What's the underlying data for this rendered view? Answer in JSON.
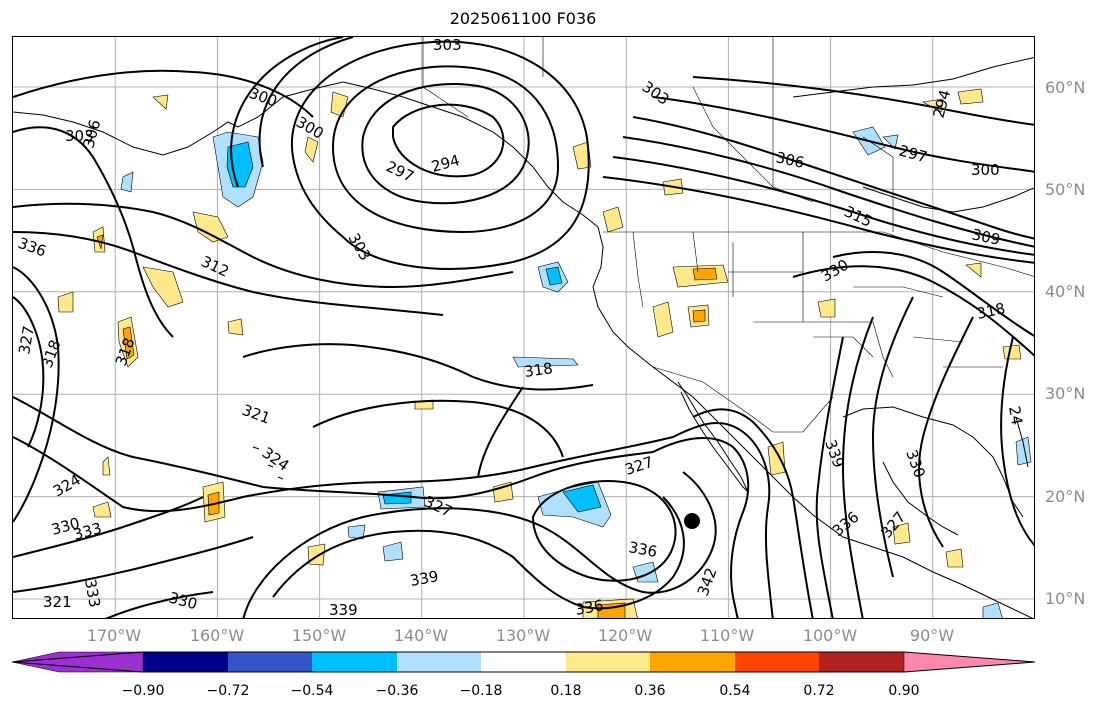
{
  "title": "2025061100 F036",
  "lat_labels": [
    {
      "text": "60°N",
      "lat": 60
    },
    {
      "text": "50°N",
      "lat": 50
    },
    {
      "text": "40°N",
      "lat": 40
    },
    {
      "text": "30°N",
      "lat": 30
    },
    {
      "text": "20°N",
      "lat": 20
    },
    {
      "text": "10°N",
      "lat": 10
    }
  ],
  "lon_labels": [
    {
      "text": "170°W",
      "lon": -170
    },
    {
      "text": "160°W",
      "lon": -160
    },
    {
      "text": "150°W",
      "lon": -150
    },
    {
      "text": "140°W",
      "lon": -140
    },
    {
      "text": "130°W",
      "lon": -130
    },
    {
      "text": "120°W",
      "lon": -120
    },
    {
      "text": "110°W",
      "lon": -110
    },
    {
      "text": "100°W",
      "lon": -100
    },
    {
      "text": "90°W",
      "lon": -90
    }
  ],
  "colorbar": {
    "colors": [
      "#9b30d0",
      "#00008b",
      "#3355cc",
      "#00bfff",
      "#b0e0ff",
      "#ffffff",
      "#ffe98a",
      "#ffa500",
      "#ff4500",
      "#b22222",
      "#ff88aa"
    ],
    "ticks": [
      "−0.90",
      "−0.72",
      "−0.54",
      "−0.36",
      "−0.18",
      "0.18",
      "0.36",
      "0.54",
      "0.72",
      "0.90"
    ]
  },
  "contour_labels": [
    "303",
    "303",
    "300",
    "303",
    "306",
    "300",
    "294",
    "297",
    "303",
    "312",
    "306",
    "297",
    "300",
    "294",
    "315",
    "309",
    "330",
    "318",
    "318",
    "318",
    "321",
    "324",
    "327",
    "327",
    "324",
    "330",
    "333",
    "333",
    "321",
    "330",
    "339",
    "336",
    "339",
    "336",
    "342",
    "336",
    "339",
    "327",
    "330",
    "24",
    "336",
    "327",
    "318"
  ],
  "marker": "storm-center-dot"
}
